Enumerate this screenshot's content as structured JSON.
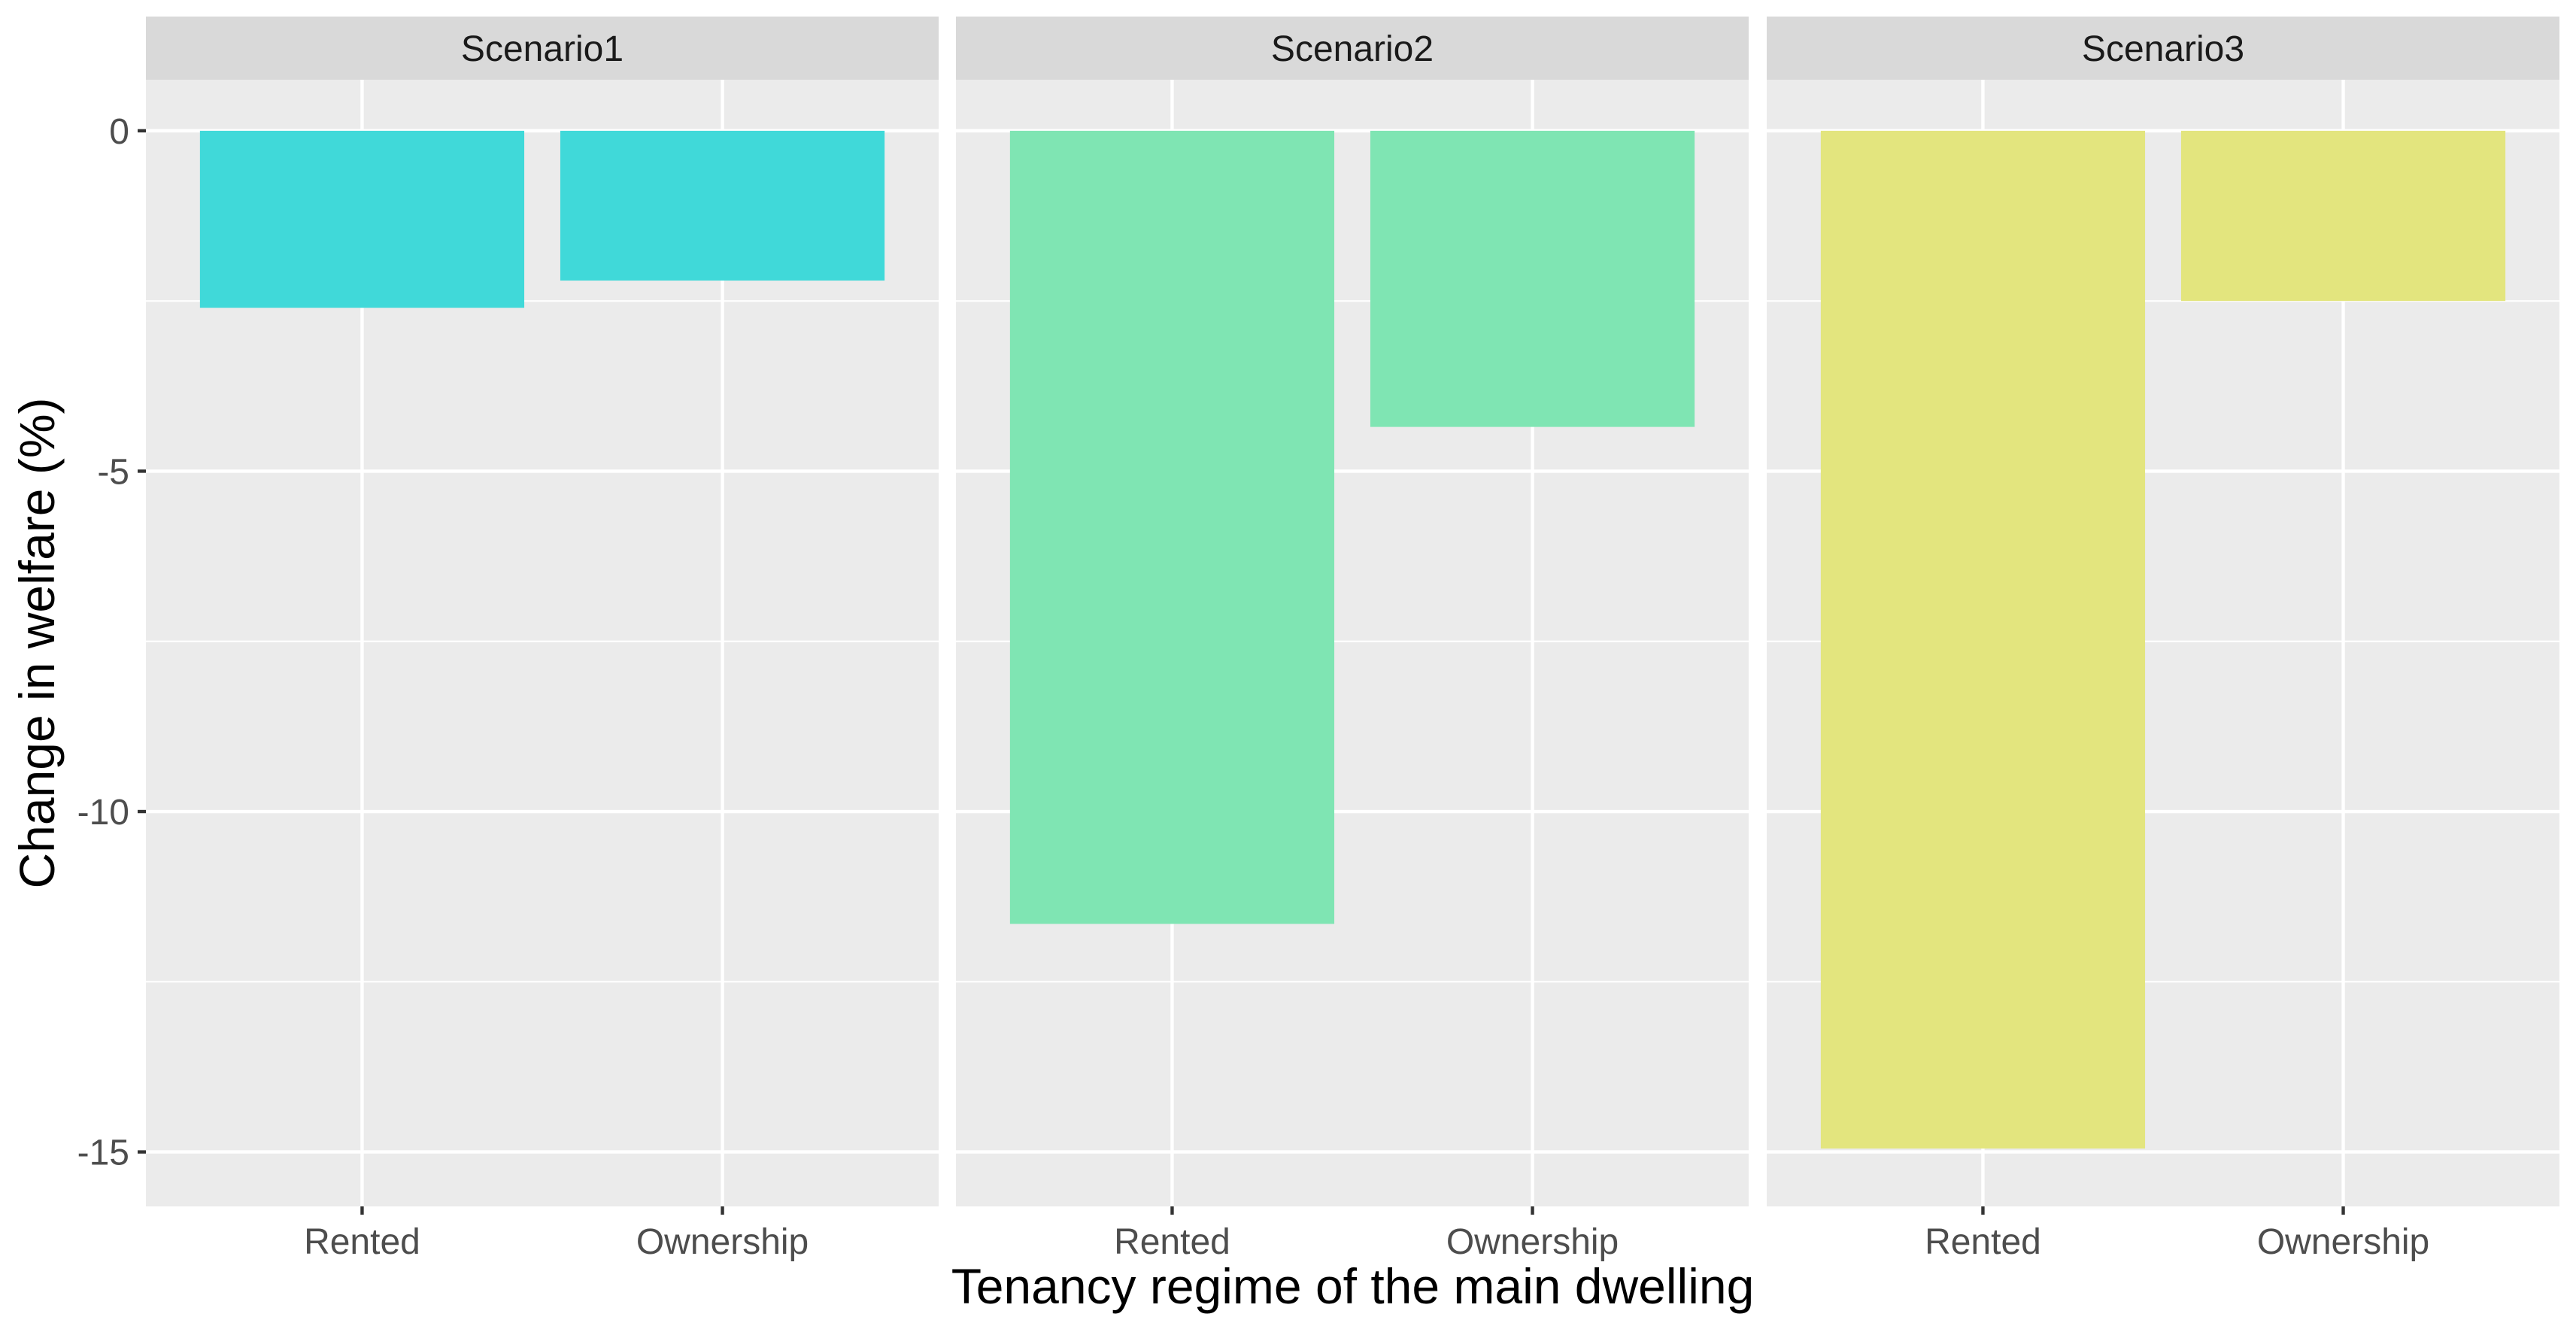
{
  "chart_data": {
    "type": "bar",
    "facet_by": "scenario",
    "facets": [
      {
        "name": "Scenario1",
        "color": "#40D9D9",
        "categories": [
          "Rented",
          "Ownership"
        ],
        "values": [
          -2.6,
          -2.2
        ]
      },
      {
        "name": "Scenario2",
        "color": "#7FE5B3",
        "categories": [
          "Rented",
          "Ownership"
        ],
        "values": [
          -11.65,
          -4.35
        ]
      },
      {
        "name": "Scenario3",
        "color": "#E3E57E",
        "categories": [
          "Rented",
          "Ownership"
        ],
        "values": [
          -14.95,
          -2.5
        ]
      }
    ],
    "xlabel": "Tenancy regime of the main dwelling",
    "ylabel": "Change in welfare (%)",
    "ylim": [
      -15.8,
      0.75
    ],
    "y_ticks": [
      0,
      -5,
      -10,
      -15
    ],
    "y_tick_labels": [
      "0",
      "-5",
      "-10",
      "-15"
    ],
    "y_minor_ticks": [
      -2.5,
      -7.5,
      -12.5
    ],
    "grid": true,
    "legend": "none",
    "theme": "ggplot2 grey"
  }
}
